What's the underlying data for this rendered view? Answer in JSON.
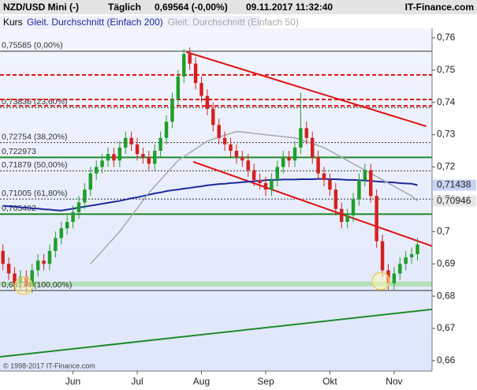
{
  "chart_data": {
    "type": "candlestick",
    "title": "NZD/USD Mini (-)",
    "period": "Täglich",
    "last": "0,69564 (-0,00%)",
    "timestamp": "09.11.2017 11:32:40",
    "brand": "IT-Finance.com",
    "copyright": "© 1998-2017 IT-Finance.com",
    "price_name": "Kurs",
    "up_color": "#1e9e2a",
    "down_color": "#d42020",
    "categories": [
      null,
      null,
      null,
      null,
      null,
      null,
      null,
      null,
      null,
      null,
      null,
      null,
      "Jun",
      null,
      null,
      null,
      null,
      null,
      null,
      null,
      null,
      null,
      null,
      "Jul",
      null,
      null,
      null,
      null,
      null,
      null,
      null,
      null,
      null,
      null,
      "Aug",
      null,
      null,
      null,
      null,
      null,
      null,
      null,
      null,
      null,
      null,
      "Sep",
      null,
      null,
      null,
      null,
      null,
      null,
      null,
      null,
      null,
      null,
      "Okt",
      null,
      null,
      null,
      null,
      null,
      null,
      null,
      null,
      null,
      null,
      "Nov",
      null,
      null,
      null,
      null
    ],
    "open": [
      0.694,
      0.69,
      0.687,
      0.684,
      0.686,
      0.683,
      0.688,
      0.691,
      0.69,
      0.694,
      0.698,
      0.701,
      0.703,
      0.706,
      0.709,
      0.713,
      0.718,
      0.72,
      0.722,
      0.724,
      0.722,
      0.726,
      0.729,
      0.727,
      0.724,
      0.723,
      0.721,
      0.725,
      0.729,
      0.734,
      0.741,
      0.748,
      0.755,
      0.752,
      0.746,
      0.742,
      0.738,
      0.733,
      0.729,
      0.727,
      0.725,
      0.723,
      0.722,
      0.719,
      0.716,
      0.715,
      0.713,
      0.716,
      0.72,
      0.723,
      0.722,
      0.726,
      0.732,
      0.729,
      0.723,
      0.718,
      0.716,
      0.713,
      0.707,
      0.703,
      0.705,
      0.71,
      0.716,
      0.719,
      0.711,
      0.697,
      0.688,
      0.684,
      0.687,
      0.69,
      0.692,
      0.693
    ],
    "high": [
      0.696,
      0.692,
      0.689,
      0.688,
      0.688,
      0.69,
      0.693,
      0.693,
      0.696,
      0.7,
      0.703,
      0.705,
      0.708,
      0.711,
      0.715,
      0.72,
      0.722,
      0.724,
      0.726,
      0.726,
      0.728,
      0.731,
      0.731,
      0.729,
      0.726,
      0.725,
      0.727,
      0.731,
      0.736,
      0.743,
      0.75,
      0.7565,
      0.757,
      0.754,
      0.748,
      0.744,
      0.74,
      0.735,
      0.731,
      0.729,
      0.727,
      0.725,
      0.724,
      0.721,
      0.718,
      0.717,
      0.718,
      0.722,
      0.725,
      0.725,
      0.728,
      0.743,
      0.734,
      0.731,
      0.725,
      0.72,
      0.718,
      0.715,
      0.709,
      0.707,
      0.712,
      0.718,
      0.721,
      0.721,
      0.713,
      0.699,
      0.69,
      0.689,
      0.692,
      0.694,
      0.695,
      0.698
    ],
    "low": [
      0.688,
      0.685,
      0.682,
      0.682,
      0.681,
      0.681,
      0.686,
      0.688,
      0.688,
      0.692,
      0.696,
      0.699,
      0.701,
      0.704,
      0.707,
      0.711,
      0.716,
      0.718,
      0.72,
      0.72,
      0.72,
      0.724,
      0.725,
      0.722,
      0.721,
      0.719,
      0.719,
      0.723,
      0.727,
      0.732,
      0.739,
      0.746,
      0.75,
      0.744,
      0.74,
      0.736,
      0.731,
      0.727,
      0.725,
      0.723,
      0.721,
      0.72,
      0.717,
      0.714,
      0.713,
      0.711,
      0.711,
      0.714,
      0.718,
      0.72,
      0.72,
      0.724,
      0.727,
      0.721,
      0.716,
      0.714,
      0.711,
      0.705,
      0.701,
      0.701,
      0.703,
      0.708,
      0.714,
      0.709,
      0.695,
      0.686,
      0.682,
      0.682,
      0.685,
      0.688,
      0.69,
      0.691
    ],
    "close": [
      0.69,
      0.687,
      0.684,
      0.686,
      0.683,
      0.688,
      0.691,
      0.69,
      0.694,
      0.698,
      0.701,
      0.703,
      0.706,
      0.709,
      0.713,
      0.718,
      0.72,
      0.722,
      0.724,
      0.722,
      0.726,
      0.729,
      0.727,
      0.724,
      0.723,
      0.721,
      0.725,
      0.729,
      0.734,
      0.741,
      0.748,
      0.755,
      0.752,
      0.746,
      0.742,
      0.738,
      0.733,
      0.729,
      0.727,
      0.725,
      0.723,
      0.722,
      0.719,
      0.716,
      0.715,
      0.713,
      0.716,
      0.72,
      0.723,
      0.722,
      0.726,
      0.732,
      0.729,
      0.723,
      0.718,
      0.716,
      0.713,
      0.707,
      0.703,
      0.705,
      0.71,
      0.716,
      0.719,
      0.711,
      0.697,
      0.688,
      0.684,
      0.687,
      0.69,
      0.692,
      0.693,
      0.696
    ],
    "series": [
      {
        "name": "Gleit. Durchschnitt (Einfach 200)",
        "color": "#1c2b9a",
        "last_label": "0,71438",
        "values": [
          0.708,
          0.7078,
          0.7077,
          0.7075,
          0.7074,
          0.7072,
          0.7071,
          0.7069,
          0.7068,
          0.7066,
          0.7065,
          0.7068,
          0.7071,
          0.7074,
          0.7077,
          0.708,
          0.7083,
          0.7086,
          0.7089,
          0.7092,
          0.7095,
          0.7099,
          0.7103,
          0.7106,
          0.711,
          0.7114,
          0.7118,
          0.7121,
          0.7125,
          0.7128,
          0.713,
          0.7133,
          0.7135,
          0.7138,
          0.714,
          0.7143,
          0.7145,
          0.7147,
          0.7148,
          0.715,
          0.7151,
          0.7153,
          0.7154,
          0.7156,
          0.7157,
          0.7159,
          0.716,
          0.716,
          0.7161,
          0.7161,
          0.7161,
          0.7162,
          0.7162,
          0.7162,
          0.7163,
          0.7163,
          0.7162,
          0.7162,
          0.7161,
          0.716,
          0.716,
          0.7159,
          0.7158,
          0.7157,
          0.7155,
          0.7154,
          0.7153,
          0.7152,
          0.715,
          0.7149,
          0.7148,
          0.71438
        ]
      },
      {
        "name": "Gleit. Durchschnitt (Einfach 50)",
        "color": "#a8a8a8",
        "last_label": "0,70946",
        "values": [
          null,
          null,
          null,
          null,
          null,
          null,
          null,
          null,
          null,
          null,
          null,
          null,
          null,
          null,
          null,
          0.69,
          0.692,
          0.694,
          0.696,
          0.698,
          0.7,
          0.7024,
          0.7048,
          0.7072,
          0.7096,
          0.712,
          0.714,
          0.716,
          0.718,
          0.72,
          0.722,
          0.7232,
          0.7244,
          0.7256,
          0.7268,
          0.728,
          0.7286,
          0.7292,
          0.7298,
          0.7304,
          0.731,
          0.7308,
          0.7306,
          0.7304,
          0.7302,
          0.73,
          0.7298,
          0.7296,
          0.7294,
          0.7292,
          0.729,
          0.7284,
          0.7278,
          0.7272,
          0.7266,
          0.726,
          0.725,
          0.724,
          0.723,
          0.722,
          0.721,
          0.72,
          0.719,
          0.718,
          0.717,
          0.716,
          0.715,
          0.714,
          0.713,
          0.712,
          0.711,
          0.70946
        ]
      }
    ],
    "levels": [
      {
        "value": 0.75585,
        "label": "0,75585 (0,00%)",
        "style": "solid",
        "color": "#333333"
      },
      {
        "value": 0.73836,
        "label": "0,73836 (23,60%)",
        "style": "dotted",
        "color": "#333333"
      },
      {
        "value": 0.72754,
        "label": "0,72754 (38,20%)",
        "style": "dotted",
        "color": "#333333"
      },
      {
        "value": 0.71879,
        "label": "0,71879 (50,00%)",
        "style": "dotted",
        "color": "#333333"
      },
      {
        "value": 0.71005,
        "label": "0,71005 (61,80%)",
        "style": "dotted",
        "color": "#333333"
      },
      {
        "value": 0.68174,
        "label": "0,68174 (100,00%)",
        "style": "solid",
        "color": "#333333"
      },
      {
        "value": 0.722973,
        "label": "0,722973",
        "style": "solid",
        "color": "#1f8a2a"
      },
      {
        "value": 0.705402,
        "label": "0,705402",
        "style": "solid",
        "color": "#1f8a2a"
      },
      {
        "value": 0.7485,
        "style": "dashed",
        "color": "#e01010"
      },
      {
        "value": 0.7409,
        "style": "dashed",
        "color": "#e01010"
      },
      {
        "value": 0.7389,
        "style": "dashed",
        "color": "#e01010"
      }
    ],
    "bands": [
      {
        "from": 0.683,
        "to": 0.6845,
        "color": "#a6dca8"
      }
    ],
    "trendlines": [
      {
        "x": [
          31.4,
          72.5
        ],
        "y": [
          0.7556,
          0.7326
        ],
        "color": "#e01010"
      },
      {
        "x": [
          32.6,
          73.5
        ],
        "y": [
          0.7216,
          0.6955
        ],
        "color": "#e01010"
      },
      {
        "x": [
          -0.5,
          73.5
        ],
        "y": [
          0.6612,
          0.6759
        ],
        "color": "#1f8a2a"
      }
    ],
    "xlim": [
      -0.5,
      73.5
    ],
    "ylim": [
      0.6568,
      0.7629
    ],
    "yticks": [
      {
        "value": 0.66,
        "label": "0,66"
      },
      {
        "value": 0.67,
        "label": "0,67"
      },
      {
        "value": 0.68,
        "label": "0,68"
      },
      {
        "value": 0.69,
        "label": "0,69"
      },
      {
        "value": 0.7,
        "label": "0,7"
      },
      {
        "value": 0.71,
        "label": "0,71"
      },
      {
        "value": 0.72,
        "label": "0,72"
      },
      {
        "value": 0.73,
        "label": "0,73"
      },
      {
        "value": 0.74,
        "label": "0,74"
      },
      {
        "value": 0.75,
        "label": "0,75"
      },
      {
        "value": 0.76,
        "label": "0,76"
      }
    ]
  }
}
